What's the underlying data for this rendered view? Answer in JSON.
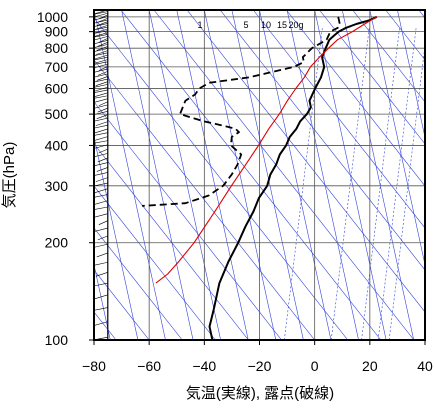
{
  "chart_data": {
    "type": "line",
    "subtype": "skew-T log-P thermodynamic diagram",
    "xlabel": "気温(実線), 露点(破線)",
    "ylabel": "気圧(hPa)",
    "x_ticks": [
      "−80",
      "−60",
      "−40",
      "−20",
      "0",
      "20",
      "40"
    ],
    "y_ticks": [
      "100",
      "200",
      "300",
      "400",
      "500",
      "600",
      "700",
      "800",
      "900",
      "1000"
    ],
    "xlim": [
      -80,
      40
    ],
    "ylim": [
      1050,
      100
    ],
    "y_scale": "log",
    "grid": true,
    "mixing_ratio_labels": [
      "1",
      "5",
      "10",
      "15",
      "20g"
    ],
    "colors": {
      "temperature": "#000000",
      "dewpoint": "#000000",
      "parcel": "#e00000",
      "reference_lines": "#3344dd",
      "grid": "#555555"
    },
    "series": [
      {
        "role": "temperature",
        "style": "solid",
        "points": [
          [
            1000,
            22
          ],
          [
            975,
            19
          ],
          [
            950,
            14
          ],
          [
            925,
            10
          ],
          [
            900,
            7
          ],
          [
            875,
            5
          ],
          [
            850,
            3
          ],
          [
            800,
            1
          ],
          [
            750,
            -1
          ],
          [
            700,
            -1
          ],
          [
            650,
            -3
          ],
          [
            600,
            -6
          ],
          [
            550,
            -9
          ],
          [
            525,
            -9
          ],
          [
            500,
            -11
          ],
          [
            475,
            -14
          ],
          [
            450,
            -16
          ],
          [
            425,
            -19
          ],
          [
            400,
            -21
          ],
          [
            375,
            -24
          ],
          [
            350,
            -26
          ],
          [
            325,
            -29
          ],
          [
            300,
            -31
          ],
          [
            275,
            -35
          ],
          [
            250,
            -38
          ],
          [
            225,
            -42
          ],
          [
            200,
            -46
          ],
          [
            175,
            -51
          ],
          [
            150,
            -56
          ],
          [
            125,
            -60
          ],
          [
            110,
            -63
          ],
          [
            100,
            -63
          ]
        ]
      },
      {
        "role": "dewpoint",
        "style": "dashed",
        "points": [
          [
            1000,
            8
          ],
          [
            950,
            8
          ],
          [
            925,
            7
          ],
          [
            900,
            4
          ],
          [
            850,
            2
          ],
          [
            800,
            -4
          ],
          [
            750,
            -8
          ],
          [
            725,
            -8
          ],
          [
            700,
            -12
          ],
          [
            650,
            -29
          ],
          [
            625,
            -44
          ],
          [
            600,
            -48
          ],
          [
            575,
            -50
          ],
          [
            550,
            -54
          ],
          [
            500,
            -57
          ],
          [
            475,
            -49
          ],
          [
            460,
            -42
          ],
          [
            450,
            -38
          ],
          [
            440,
            -37
          ],
          [
            425,
            -40
          ],
          [
            400,
            -41
          ],
          [
            375,
            -38
          ],
          [
            350,
            -40
          ],
          [
            325,
            -43
          ],
          [
            300,
            -47
          ],
          [
            280,
            -53
          ],
          [
            265,
            -62
          ],
          [
            260,
            -78
          ]
        ]
      },
      {
        "role": "parcel",
        "style": "solid",
        "points": [
          [
            1000,
            22
          ],
          [
            950,
            17
          ],
          [
            900,
            12
          ],
          [
            850,
            6
          ],
          [
            800,
            2
          ],
          [
            750,
            -2
          ],
          [
            700,
            -6
          ],
          [
            650,
            -9
          ],
          [
            600,
            -13
          ],
          [
            550,
            -17
          ],
          [
            500,
            -21
          ],
          [
            450,
            -26
          ],
          [
            400,
            -31
          ],
          [
            350,
            -37
          ],
          [
            300,
            -44
          ],
          [
            250,
            -52
          ],
          [
            200,
            -62
          ],
          [
            175,
            -69
          ],
          [
            160,
            -74
          ],
          [
            150,
            -79
          ]
        ]
      }
    ]
  }
}
